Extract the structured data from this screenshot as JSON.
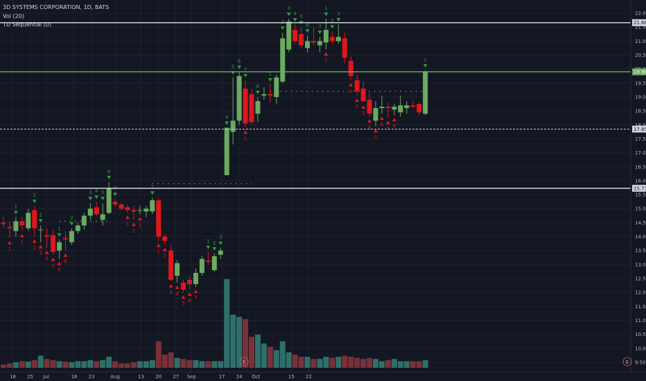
{
  "header": {
    "symbol_line": "3D SYSTEMS CORPORATION, 1D, BATS",
    "volume_line": "Vol (20)",
    "indicator_line": "TD Sequential (0)"
  },
  "colors": {
    "background": "#131722",
    "grid": "#1e2230",
    "up": "#6aab60",
    "down": "#e0161d",
    "vol_up": "#2f6f6a",
    "vol_down": "#7a3038",
    "td_up": "#2e9b3d",
    "td_down": "#e0161d",
    "axis_text": "#b2b5be"
  },
  "earnings_marker": "E",
  "chart_data": {
    "type": "candlestick",
    "title": "3D SYSTEMS CORPORATION, 1D, BATS",
    "y_axis": {
      "range": [
        9.4,
        22.2
      ],
      "ticks": [
        "9.50",
        "10.00",
        "10.50",
        "11.00",
        "11.50",
        "12.00",
        "12.50",
        "13.00",
        "13.50",
        "14.00",
        "14.50",
        "15.00",
        "15.50",
        "16.00",
        "16.50",
        "17.00",
        "17.50",
        "18.00",
        "18.50",
        "19.00",
        "19.50",
        "20.00",
        "20.50",
        "21.00",
        "21.50",
        "22.00"
      ]
    },
    "x_axis": {
      "ticks": [
        {
          "label": "18",
          "bar": 1.5
        },
        {
          "label": "25",
          "bar": 4.3
        },
        {
          "label": "Jul",
          "bar": 6.9
        },
        {
          "label": "16",
          "bar": 11.4
        },
        {
          "label": "23",
          "bar": 14.2
        },
        {
          "label": "Aug",
          "bar": 18.0
        },
        {
          "label": "13",
          "bar": 22.2
        },
        {
          "label": "20",
          "bar": 25.0
        },
        {
          "label": "27",
          "bar": 27.8
        },
        {
          "label": "Sep",
          "bar": 30.3
        },
        {
          "label": "17",
          "bar": 35.2
        },
        {
          "label": "24",
          "bar": 38.0
        },
        {
          "label": "Oct",
          "bar": 40.7
        },
        {
          "label": "15",
          "bar": 46.4
        },
        {
          "label": "22",
          "bar": 49.2
        }
      ]
    },
    "price_lines": [
      {
        "value": 21.66,
        "label": "21.66",
        "style": "solid",
        "color": "#d1d4dc"
      },
      {
        "value": 19.9,
        "label": "19.90",
        "style": "solid",
        "color": "#6aab60"
      },
      {
        "value": 17.85,
        "label": "17.85",
        "style": "dashed",
        "color": "#d1d4dc"
      },
      {
        "value": 15.73,
        "label": "15.73",
        "style": "solid",
        "color": "#d1d4dc"
      }
    ],
    "candles": [
      {
        "o": 14.5,
        "h": 14.7,
        "l": 14.3,
        "c": 14.45
      },
      {
        "o": 14.35,
        "h": 14.55,
        "l": 13.95,
        "c": 14.3
      },
      {
        "o": 14.2,
        "h": 14.7,
        "l": 14.0,
        "c": 14.55
      },
      {
        "o": 14.55,
        "h": 14.7,
        "l": 14.2,
        "c": 14.4
      },
      {
        "o": 14.3,
        "h": 15.0,
        "l": 14.2,
        "c": 14.85
      },
      {
        "o": 14.95,
        "h": 15.1,
        "l": 14.0,
        "c": 14.3
      },
      {
        "o": 14.25,
        "h": 14.4,
        "l": 13.8,
        "c": 14.25
      },
      {
        "o": 14.05,
        "h": 14.3,
        "l": 13.6,
        "c": 14.0
      },
      {
        "o": 14.05,
        "h": 14.25,
        "l": 13.35,
        "c": 13.45
      },
      {
        "o": 13.5,
        "h": 13.9,
        "l": 13.2,
        "c": 13.8
      },
      {
        "o": 13.95,
        "h": 14.2,
        "l": 13.5,
        "c": 13.9
      },
      {
        "o": 13.8,
        "h": 14.3,
        "l": 13.7,
        "c": 14.2
      },
      {
        "o": 14.2,
        "h": 14.5,
        "l": 14.1,
        "c": 14.4
      },
      {
        "o": 14.4,
        "h": 14.85,
        "l": 14.25,
        "c": 14.75
      },
      {
        "o": 14.75,
        "h": 15.2,
        "l": 14.6,
        "c": 15.0
      },
      {
        "o": 15.05,
        "h": 15.25,
        "l": 14.75,
        "c": 14.8
      },
      {
        "o": 14.6,
        "h": 15.2,
        "l": 14.4,
        "c": 14.8
      },
      {
        "o": 14.85,
        "h": 15.95,
        "l": 14.8,
        "c": 15.75
      },
      {
        "o": 15.25,
        "h": 15.35,
        "l": 15.05,
        "c": 15.15
      },
      {
        "o": 15.15,
        "h": 15.2,
        "l": 14.95,
        "c": 15.0
      },
      {
        "o": 15.05,
        "h": 15.15,
        "l": 14.85,
        "c": 14.95
      },
      {
        "o": 14.95,
        "h": 15.1,
        "l": 14.6,
        "c": 14.9
      },
      {
        "o": 14.95,
        "h": 15.1,
        "l": 14.8,
        "c": 14.95
      },
      {
        "o": 14.9,
        "h": 15.1,
        "l": 14.7,
        "c": 15.0
      },
      {
        "o": 14.9,
        "h": 15.4,
        "l": 14.8,
        "c": 15.3
      },
      {
        "o": 15.3,
        "h": 15.35,
        "l": 13.85,
        "c": 14.0
      },
      {
        "o": 14.0,
        "h": 14.1,
        "l": 13.7,
        "c": 13.85
      },
      {
        "o": 13.5,
        "h": 13.7,
        "l": 12.4,
        "c": 12.45
      },
      {
        "o": 12.6,
        "h": 13.15,
        "l": 12.35,
        "c": 13.05
      },
      {
        "o": 12.35,
        "h": 12.45,
        "l": 12.0,
        "c": 12.1
      },
      {
        "o": 12.45,
        "h": 12.6,
        "l": 12.1,
        "c": 12.3
      },
      {
        "o": 12.3,
        "h": 12.85,
        "l": 12.2,
        "c": 12.7
      },
      {
        "o": 12.7,
        "h": 13.3,
        "l": 12.6,
        "c": 13.2
      },
      {
        "o": 13.15,
        "h": 13.45,
        "l": 13.0,
        "c": 13.1
      },
      {
        "o": 12.8,
        "h": 13.4,
        "l": 12.75,
        "c": 13.3
      },
      {
        "o": 13.35,
        "h": 13.6,
        "l": 13.2,
        "c": 13.5
      },
      {
        "o": 16.2,
        "h": 17.9,
        "l": 16.2,
        "c": 17.9
      },
      {
        "o": 17.75,
        "h": 19.7,
        "l": 17.3,
        "c": 18.15
      },
      {
        "o": 18.15,
        "h": 19.9,
        "l": 18.0,
        "c": 19.75
      },
      {
        "o": 19.3,
        "h": 19.6,
        "l": 17.9,
        "c": 18.05
      },
      {
        "o": 19.1,
        "h": 19.3,
        "l": 18.0,
        "c": 18.1
      },
      {
        "o": 18.4,
        "h": 19.0,
        "l": 18.1,
        "c": 18.85
      },
      {
        "o": 19.05,
        "h": 19.35,
        "l": 18.9,
        "c": 19.1
      },
      {
        "o": 19.1,
        "h": 19.45,
        "l": 18.8,
        "c": 19.05
      },
      {
        "o": 19.0,
        "h": 19.8,
        "l": 18.75,
        "c": 19.7
      },
      {
        "o": 19.55,
        "h": 21.3,
        "l": 19.5,
        "c": 21.1
      },
      {
        "o": 20.7,
        "h": 21.8,
        "l": 20.6,
        "c": 21.7
      },
      {
        "o": 21.4,
        "h": 21.6,
        "l": 20.9,
        "c": 21.0
      },
      {
        "o": 21.25,
        "h": 21.5,
        "l": 20.75,
        "c": 20.85
      },
      {
        "o": 20.75,
        "h": 21.2,
        "l": 20.6,
        "c": 21.0
      },
      {
        "o": 21.0,
        "h": 21.5,
        "l": 20.85,
        "c": 20.95
      },
      {
        "o": 20.85,
        "h": 21.15,
        "l": 20.6,
        "c": 21.0
      },
      {
        "o": 20.95,
        "h": 21.8,
        "l": 20.7,
        "c": 21.4
      },
      {
        "o": 21.15,
        "h": 21.35,
        "l": 20.9,
        "c": 21.0
      },
      {
        "o": 21.0,
        "h": 21.6,
        "l": 20.9,
        "c": 21.15
      },
      {
        "o": 21.1,
        "h": 21.3,
        "l": 20.2,
        "c": 20.4
      },
      {
        "o": 20.3,
        "h": 20.45,
        "l": 19.6,
        "c": 19.75
      },
      {
        "o": 19.6,
        "h": 19.8,
        "l": 19.05,
        "c": 19.2
      },
      {
        "o": 19.3,
        "h": 19.55,
        "l": 18.8,
        "c": 18.85
      },
      {
        "o": 18.9,
        "h": 19.15,
        "l": 18.3,
        "c": 18.4
      },
      {
        "o": 18.15,
        "h": 18.85,
        "l": 17.95,
        "c": 18.6
      },
      {
        "o": 18.6,
        "h": 19.05,
        "l": 18.4,
        "c": 18.65
      },
      {
        "o": 18.65,
        "h": 18.8,
        "l": 18.25,
        "c": 18.6
      },
      {
        "o": 18.55,
        "h": 18.75,
        "l": 18.35,
        "c": 18.65
      },
      {
        "o": 18.45,
        "h": 19.05,
        "l": 18.3,
        "c": 18.7
      },
      {
        "o": 18.6,
        "h": 18.85,
        "l": 18.4,
        "c": 18.7
      },
      {
        "o": 18.7,
        "h": 18.85,
        "l": 18.6,
        "c": 18.65
      },
      {
        "o": 18.75,
        "h": 18.8,
        "l": 18.35,
        "c": 18.45
      },
      {
        "o": 18.4,
        "h": 19.95,
        "l": 18.35,
        "c": 19.9
      }
    ],
    "volume": [
      0.15,
      0.2,
      0.25,
      0.3,
      0.28,
      0.35,
      0.55,
      0.4,
      0.35,
      0.3,
      0.28,
      0.25,
      0.3,
      0.3,
      0.35,
      0.3,
      0.35,
      0.5,
      0.3,
      0.2,
      0.2,
      0.25,
      0.3,
      0.3,
      0.35,
      1.2,
      0.6,
      0.7,
      0.45,
      0.4,
      0.35,
      0.35,
      0.3,
      0.3,
      0.3,
      0.3,
      4.0,
      2.4,
      2.3,
      2.2,
      1.4,
      1.5,
      1.1,
      0.95,
      0.8,
      1.2,
      0.7,
      0.6,
      0.5,
      0.5,
      0.4,
      0.4,
      0.5,
      0.45,
      0.5,
      0.55,
      0.5,
      0.45,
      0.4,
      0.45,
      0.4,
      0.3,
      0.35,
      0.4,
      0.3,
      0.3,
      0.3,
      0.3,
      0.35
    ],
    "td_marks": [
      {
        "bar": 2,
        "side": "up",
        "count": "1"
      },
      {
        "bar": 5,
        "side": "up",
        "count": "1"
      },
      {
        "bar": 6,
        "side": "up",
        "count": "2"
      },
      {
        "bar": 9,
        "side": "up",
        "count": "1"
      },
      {
        "bar": 11,
        "side": "up",
        "count": "2"
      },
      {
        "bar": 14,
        "side": "up",
        "count": "3"
      },
      {
        "bar": 15,
        "side": "up",
        "count": "4"
      },
      {
        "bar": 16,
        "side": "up",
        "count": "5"
      },
      {
        "bar": 17,
        "side": "up",
        "count": "6"
      },
      {
        "bar": 18,
        "side": "up",
        "count": "7"
      },
      {
        "bar": 24,
        "side": "up",
        "count": "1"
      },
      {
        "bar": 33,
        "side": "up",
        "count": "1"
      },
      {
        "bar": 34,
        "side": "up",
        "count": "2"
      },
      {
        "bar": 35,
        "side": "up",
        "count": "3"
      },
      {
        "bar": 36,
        "side": "up",
        "count": "4"
      },
      {
        "bar": 37,
        "side": "up",
        "count": "5"
      },
      {
        "bar": 38,
        "side": "up",
        "count": "6"
      },
      {
        "bar": 39,
        "side": "up",
        "count": "7"
      },
      {
        "bar": 41,
        "side": "up",
        "count": "8"
      },
      {
        "bar": 43,
        "side": "up",
        "count": "1"
      },
      {
        "bar": 45,
        "side": "up",
        "count": "2"
      },
      {
        "bar": 46,
        "side": "up",
        "count": "3"
      },
      {
        "bar": 47,
        "side": "up",
        "count": "4"
      },
      {
        "bar": 48,
        "side": "up",
        "count": "5"
      },
      {
        "bar": 49,
        "side": "up",
        "count": "6"
      },
      {
        "bar": 51,
        "side": "up",
        "count": "7"
      },
      {
        "bar": 52,
        "side": "up",
        "count": "1"
      },
      {
        "bar": 53,
        "side": "up",
        "count": "2"
      },
      {
        "bar": 54,
        "side": "up",
        "count": "3"
      },
      {
        "bar": 68,
        "side": "up",
        "count": "1"
      },
      {
        "bar": 1,
        "side": "down",
        "count": "1"
      },
      {
        "bar": 3,
        "side": "down",
        "count": "1"
      },
      {
        "bar": 5,
        "side": "down",
        "count": "1"
      },
      {
        "bar": 6,
        "side": "down",
        "count": "2"
      },
      {
        "bar": 7,
        "side": "down",
        "count": "3"
      },
      {
        "bar": 8,
        "side": "down",
        "count": "4"
      },
      {
        "bar": 9,
        "side": "down",
        "count": "5"
      },
      {
        "bar": 10,
        "side": "down",
        "count": "6"
      },
      {
        "bar": 20,
        "side": "down",
        "count": "1"
      },
      {
        "bar": 21,
        "side": "down",
        "count": "2"
      },
      {
        "bar": 22,
        "side": "down",
        "count": "3"
      },
      {
        "bar": 25,
        "side": "down",
        "count": "1"
      },
      {
        "bar": 26,
        "side": "down",
        "count": "2"
      },
      {
        "bar": 27,
        "side": "down",
        "count": "3"
      },
      {
        "bar": 28,
        "side": "down",
        "count": "4"
      },
      {
        "bar": 29,
        "side": "down",
        "count": "5"
      },
      {
        "bar": 30,
        "side": "down",
        "count": "6"
      },
      {
        "bar": 31,
        "side": "down",
        "count": "7"
      },
      {
        "bar": 39,
        "side": "down",
        "count": "1"
      },
      {
        "bar": 52,
        "side": "down",
        "count": "1"
      },
      {
        "bar": 56,
        "side": "down",
        "count": "1"
      },
      {
        "bar": 57,
        "side": "down",
        "count": "2"
      },
      {
        "bar": 58,
        "side": "down",
        "count": "3"
      },
      {
        "bar": 59,
        "side": "down",
        "count": "4"
      },
      {
        "bar": 60,
        "side": "down",
        "count": "5"
      },
      {
        "bar": 61,
        "side": "down",
        "count": "6"
      },
      {
        "bar": 62,
        "side": "down",
        "count": "7"
      },
      {
        "bar": 63,
        "side": "down",
        "count": "8"
      }
    ],
    "support_levels": [
      {
        "value": 14.55,
        "from_bar": 9,
        "to_bar": 17
      },
      {
        "value": 15.9,
        "from_bar": 24,
        "to_bar": 40
      },
      {
        "value": 19.2,
        "from_bar": 43,
        "to_bar": 68
      }
    ]
  }
}
